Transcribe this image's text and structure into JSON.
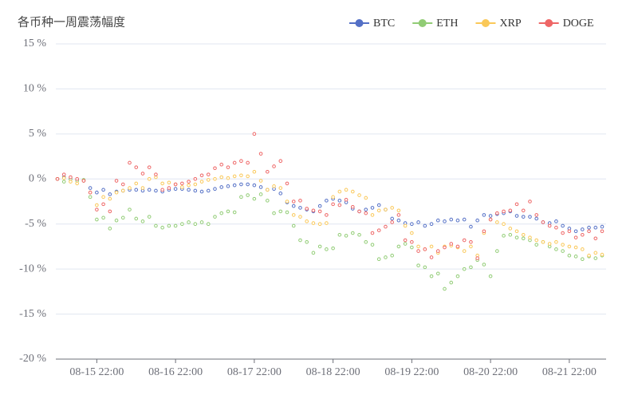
{
  "chart_data": {
    "type": "line",
    "title": "各币种一周震荡幅度",
    "categories": [
      null,
      null,
      null,
      null,
      null,
      null,
      "08-15 22:00",
      null,
      null,
      null,
      null,
      null,
      null,
      null,
      null,
      null,
      null,
      null,
      "08-16 22:00",
      null,
      null,
      null,
      null,
      null,
      null,
      null,
      null,
      null,
      null,
      null,
      "08-17 22:00",
      null,
      null,
      null,
      null,
      null,
      null,
      null,
      null,
      null,
      null,
      null,
      "08-18 22:00",
      null,
      null,
      null,
      null,
      null,
      null,
      null,
      null,
      null,
      null,
      null,
      "08-19 22:00",
      null,
      null,
      null,
      null,
      null,
      null,
      null,
      null,
      null,
      null,
      null,
      "08-20 22:00",
      null,
      null,
      null,
      null,
      null,
      null,
      null,
      null,
      null,
      null,
      null,
      "08-21 22:00",
      null,
      null,
      null,
      null,
      null
    ],
    "series": [
      {
        "name": "BTC",
        "color": "#5470c6",
        "values": [
          0,
          0.2,
          0,
          -0.1,
          -0.2,
          -1.0,
          -1.5,
          -1.2,
          -1.7,
          -1.4,
          -1.3,
          -1.2,
          -1.2,
          -1.3,
          -1.2,
          -1.3,
          -1.4,
          -1.2,
          -1.1,
          -1.1,
          -1.2,
          -1.3,
          -1.4,
          -1.3,
          -1.1,
          -0.9,
          -0.8,
          -0.7,
          -0.6,
          -0.6,
          -0.7,
          -0.9,
          -1.2,
          -1.1,
          -1.6,
          -2.6,
          -3.0,
          -3.2,
          -3.4,
          -3.6,
          -3.0,
          -2.4,
          -2.2,
          -2.4,
          -2.6,
          -3.3,
          -3.6,
          -3.4,
          -3.2,
          -2.9,
          -3.4,
          -4.4,
          -4.6,
          -4.9,
          -5.0,
          -4.8,
          -5.2,
          -5.0,
          -4.6,
          -4.7,
          -4.5,
          -4.6,
          -4.5,
          -5.3,
          -4.6,
          -4.0,
          -4.1,
          -3.9,
          -3.8,
          -3.6,
          -4.1,
          -4.2,
          -4.2,
          -4.4,
          -4.8,
          -4.9,
          -4.7,
          -5.2,
          -5.5,
          -5.8,
          -5.6,
          -5.4,
          -5.4,
          -5.3
        ]
      },
      {
        "name": "ETH",
        "color": "#91cc75",
        "values": [
          0,
          -0.3,
          0,
          -0.2,
          -0.1,
          -2.0,
          -4.5,
          -4.3,
          -5.5,
          -4.6,
          -4.3,
          -3.4,
          -4.4,
          -4.7,
          -4.2,
          -5.2,
          -5.4,
          -5.2,
          -5.2,
          -5.0,
          -4.8,
          -5.0,
          -4.8,
          -5.0,
          -4.2,
          -3.8,
          -3.6,
          -3.7,
          -2.0,
          -1.8,
          -2.2,
          -1.7,
          -2.4,
          -3.8,
          -3.6,
          -3.7,
          -5.2,
          -6.8,
          -7.0,
          -8.2,
          -7.5,
          -7.8,
          -7.7,
          -6.2,
          -6.3,
          -6.0,
          -6.2,
          -7.0,
          -7.3,
          -8.9,
          -8.7,
          -8.5,
          -7.5,
          -7.2,
          -7.6,
          -9.6,
          -9.8,
          -10.8,
          -10.5,
          -12.2,
          -11.5,
          -10.8,
          -10.0,
          -9.8,
          -9.0,
          -9.5,
          -10.8,
          -8.0,
          -6.3,
          -6.2,
          -6.5,
          -6.6,
          -6.8,
          -7.3,
          -7.0,
          -7.5,
          -7.8,
          -8.0,
          -8.5,
          -8.6,
          -8.9,
          -8.6,
          -8.8,
          -8.5
        ]
      },
      {
        "name": "XRP",
        "color": "#fac858",
        "values": [
          0,
          0.1,
          -0.3,
          -0.5,
          -0.2,
          -1.5,
          -2.9,
          -2.0,
          -2.2,
          -1.5,
          -1.3,
          -1.0,
          -0.5,
          -1.0,
          0,
          0.2,
          -0.5,
          -0.4,
          -0.6,
          -0.9,
          -0.7,
          -0.6,
          -0.3,
          -0.1,
          0,
          0.2,
          0.1,
          0.3,
          0.4,
          0.3,
          0.8,
          -0.2,
          -1.2,
          -0.8,
          -1.0,
          -2.5,
          -4.0,
          -4.2,
          -4.7,
          -4.9,
          -5.0,
          -4.9,
          -2.0,
          -1.4,
          -1.2,
          -1.4,
          -1.8,
          -2.1,
          -4.0,
          -3.5,
          -3.4,
          -3.2,
          -3.5,
          -5.2,
          -6.0,
          -7.5,
          -7.8,
          -7.5,
          -8.2,
          -7.5,
          -7.4,
          -7.6,
          -8.0,
          -7.5,
          -8.5,
          -6.0,
          -4.5,
          -4.8,
          -5.0,
          -5.5,
          -5.8,
          -6.2,
          -6.5,
          -6.8,
          -7.0,
          -7.2,
          -7.0,
          -7.3,
          -7.5,
          -7.6,
          -7.8,
          -8.5,
          -8.2,
          -8.4
        ]
      },
      {
        "name": "DOGE",
        "color": "#ee6666",
        "values": [
          0,
          0.5,
          0.2,
          0,
          -0.2,
          -1.5,
          -3.4,
          -2.8,
          -3.6,
          -0.2,
          -0.6,
          1.8,
          1.3,
          0.6,
          1.3,
          0.5,
          -1.2,
          -1.0,
          -0.6,
          -0.5,
          -0.3,
          0,
          0.4,
          0.5,
          1.2,
          1.6,
          1.3,
          1.8,
          2.0,
          1.8,
          5.0,
          2.8,
          0.8,
          1.4,
          2.0,
          -0.5,
          -2.5,
          -2.4,
          -3.3,
          -3.5,
          -3.6,
          -4.0,
          -2.8,
          -2.9,
          -2.3,
          -3.1,
          -3.6,
          -3.8,
          -6.0,
          -5.7,
          -5.3,
          -4.8,
          -4.0,
          -6.8,
          -7.0,
          -8.0,
          -7.8,
          -8.7,
          -8.0,
          -7.6,
          -7.2,
          -7.5,
          -6.8,
          -7.0,
          -8.8,
          -5.8,
          -4.5,
          -3.8,
          -3.6,
          -3.5,
          -2.8,
          -3.5,
          -2.5,
          -4.0,
          -4.8,
          -5.2,
          -5.4,
          -6.0,
          -5.8,
          -6.5,
          -6.2,
          -5.8,
          -6.6,
          -5.8
        ]
      }
    ],
    "ylim": [
      -20,
      15
    ],
    "yticks": [
      {
        "value": -20,
        "label": "-20 %"
      },
      {
        "value": -15,
        "label": "-15 %"
      },
      {
        "value": -10,
        "label": "-10 %"
      },
      {
        "value": -5,
        "label": "-5 %"
      },
      {
        "value": 0,
        "label": "0 %"
      },
      {
        "value": 5,
        "label": "5 %"
      },
      {
        "value": 10,
        "label": "10 %"
      },
      {
        "value": 15,
        "label": "15 %"
      }
    ],
    "grid": true,
    "legend": "top-right"
  }
}
